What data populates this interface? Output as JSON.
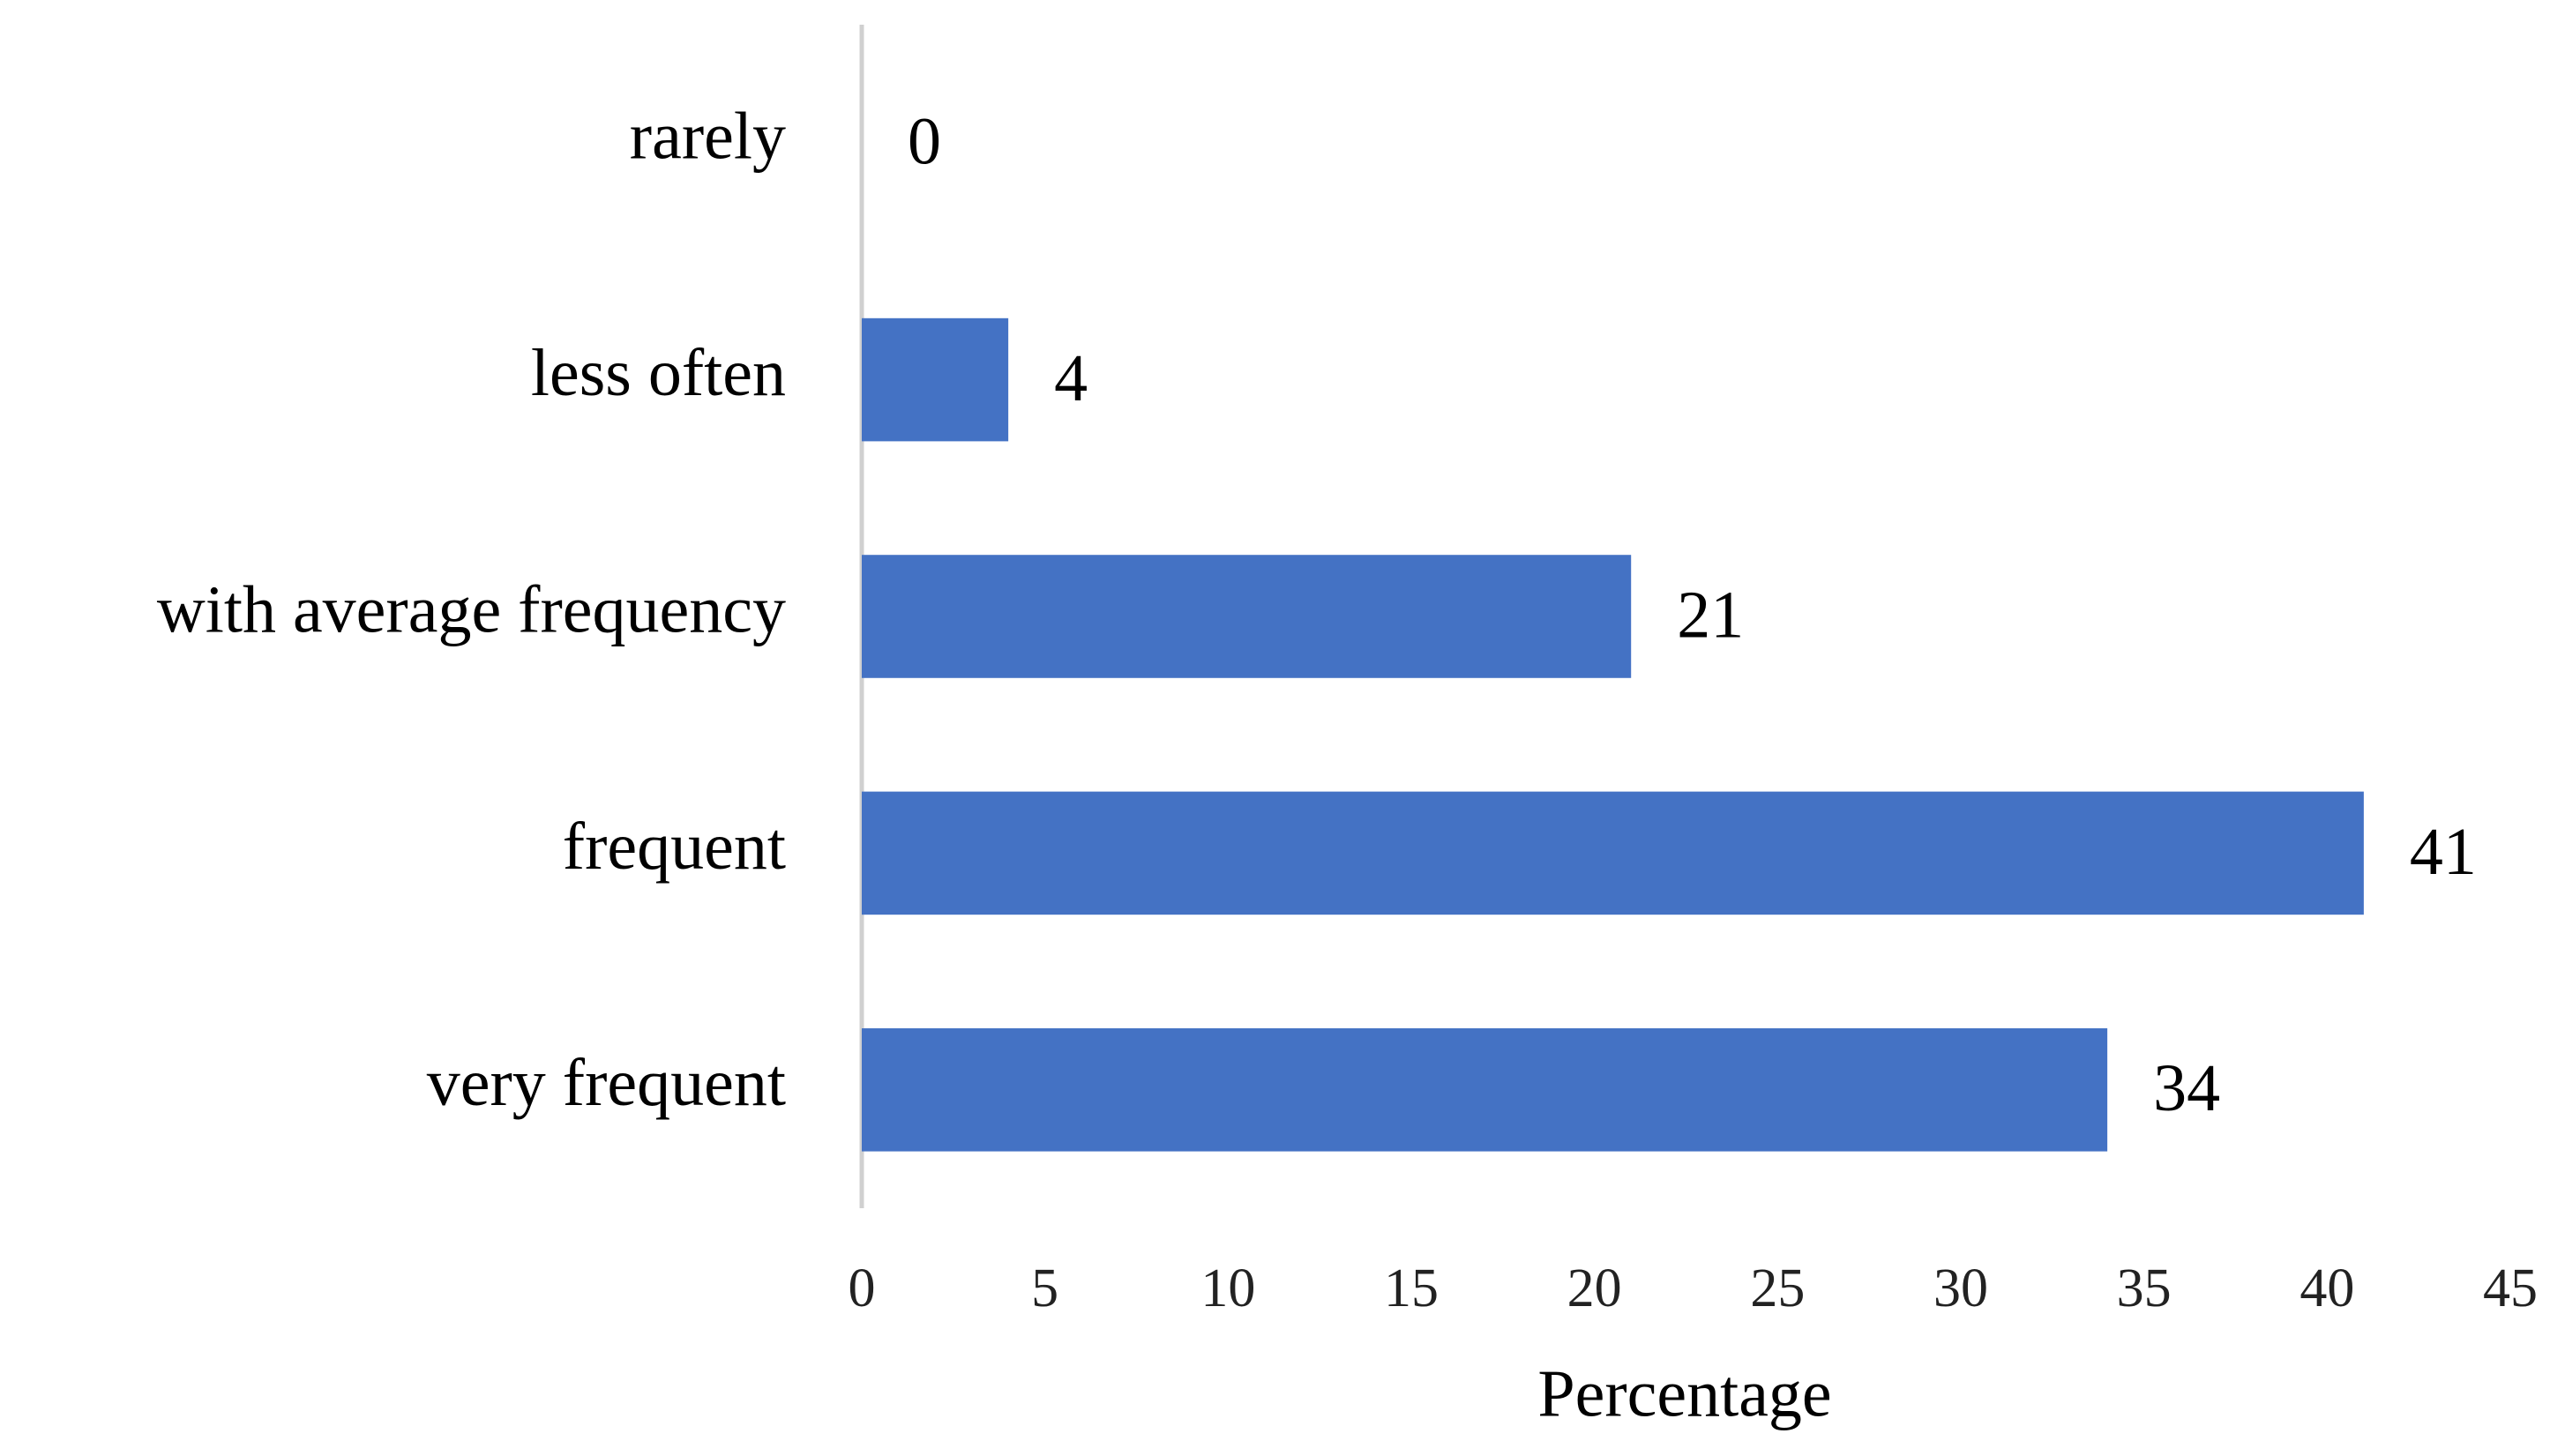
{
  "chart_data": {
    "type": "hbar",
    "categories": [
      "rarely",
      "less often",
      "with average frequency",
      "frequent",
      "very frequent"
    ],
    "values": [
      0,
      4,
      21,
      41,
      34
    ],
    "color": "#4472c4",
    "x_label": "Percentage",
    "xlim": [
      0,
      45
    ],
    "xticks": [
      0,
      5,
      10,
      15,
      20,
      25,
      30,
      35,
      40,
      45
    ],
    "grid": false
  }
}
